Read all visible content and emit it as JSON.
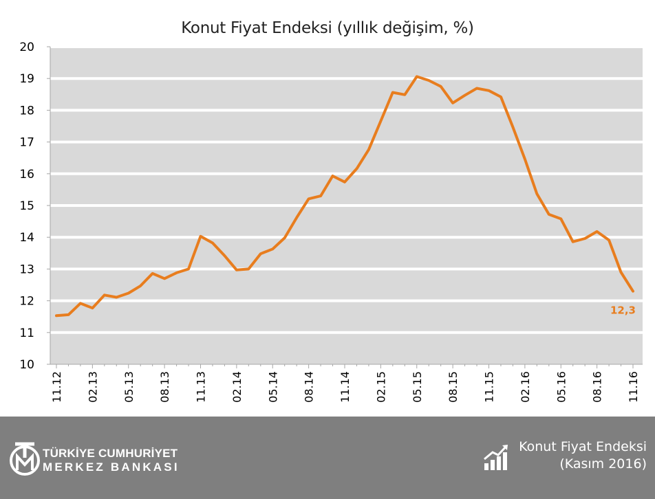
{
  "chart_data": {
    "type": "line",
    "title": "Konut Fiyat Endeksi (yıllık değişim, %)",
    "xlabel": "",
    "ylabel": "",
    "ylim": [
      10,
      20
    ],
    "yticks": [
      10,
      11,
      12,
      13,
      14,
      15,
      16,
      17,
      18,
      19,
      20
    ],
    "grid": true,
    "x": [
      "11.12",
      "12.12",
      "01.13",
      "02.13",
      "03.13",
      "04.13",
      "05.13",
      "06.13",
      "07.13",
      "08.13",
      "09.13",
      "10.13",
      "11.13",
      "12.13",
      "01.14",
      "02.14",
      "03.14",
      "04.14",
      "05.14",
      "06.14",
      "07.14",
      "08.14",
      "09.14",
      "10.14",
      "11.14",
      "12.14",
      "01.15",
      "02.15",
      "03.15",
      "04.15",
      "05.15",
      "06.15",
      "07.15",
      "08.15",
      "09.15",
      "10.15",
      "11.15",
      "12.15",
      "01.16",
      "02.16",
      "03.16",
      "04.16",
      "05.16",
      "06.16",
      "07.16",
      "08.16",
      "09.16",
      "10.16",
      "11.16"
    ],
    "x_tick_labels": [
      "11.12",
      "02.13",
      "05.13",
      "08.13",
      "11.13",
      "02.14",
      "05.14",
      "08.14",
      "11.14",
      "02.15",
      "05.15",
      "08.15",
      "11.15",
      "02.16",
      "05.16",
      "08.16",
      "11.16"
    ],
    "series": [
      {
        "values": [
          11.53,
          11.56,
          11.92,
          11.77,
          12.18,
          12.11,
          12.24,
          12.47,
          12.86,
          12.7,
          12.88,
          13.0,
          14.03,
          13.82,
          13.42,
          12.97,
          13.0,
          13.48,
          13.63,
          13.98,
          14.62,
          15.21,
          15.3,
          15.93,
          15.74,
          16.16,
          16.76,
          17.66,
          18.56,
          18.49,
          19.06,
          18.94,
          18.75,
          18.23,
          18.47,
          18.69,
          18.62,
          18.42,
          17.47,
          16.46,
          15.37,
          14.72,
          14.58,
          13.86,
          13.96,
          14.18,
          13.91,
          12.9,
          12.3
        ],
        "color": "#e87d1e"
      }
    ],
    "annotations": [
      {
        "text": "12,3",
        "color": "#e87d1e"
      }
    ],
    "plot_background": "#d9d9d9",
    "gridline_color": "#ffffff"
  },
  "footer": {
    "logo_line1": "TÜRKİYE CUMHURİYET",
    "logo_line2": "MERKEZ BANKASI",
    "title": "Konut Fiyat Endeksi",
    "subtitle": "(Kasım 2016)",
    "background": "#7f7f7f",
    "logo_icon": "tcmb-emblem-icon",
    "chart_icon": "bar-chart-growth-icon"
  }
}
